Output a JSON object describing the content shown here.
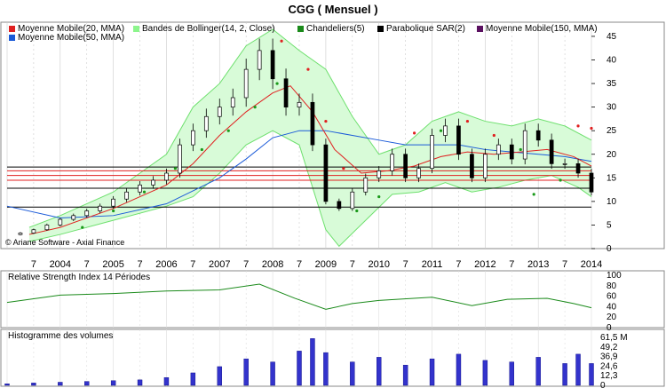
{
  "title": "CGG  ( Mensuel )",
  "legend": [
    {
      "label": "Moyenne Mobile(20, MMA)",
      "color": "#e02020"
    },
    {
      "label": "Bandes de Bollinger(14, 2, Close)",
      "color": "#8cf58c"
    },
    {
      "label": "Chandeliers(5)",
      "color": "#1a8a1a"
    },
    {
      "label": "Parabolique SAR(2)",
      "color": "#000000"
    },
    {
      "label": "Moyenne Mobile(150, MMA)",
      "color": "#5a1060"
    },
    {
      "label": "Moyenne Mobile(50, MMA)",
      "color": "#1a5ad8"
    }
  ],
  "copyright": "© Ariane Software - Axial Finance",
  "x_ticks": [
    "7",
    "2004",
    "7",
    "2005",
    "7",
    "2006",
    "7",
    "2007",
    "7",
    "2008",
    "7",
    "2009",
    "7",
    "2010",
    "7",
    "2011",
    "7",
    "2012",
    "7",
    "2013",
    "7",
    "2014"
  ],
  "rsi_label": "Relative Strength Index 14 Périodes",
  "volume_label": "Histogramme des volumes",
  "chart_data": [
    {
      "type": "candlestick",
      "title": "CGG  ( Mensuel )",
      "y_ticks": [
        "0",
        "5",
        "10",
        "15",
        "20",
        "25",
        "30",
        "35",
        "40",
        "45"
      ],
      "ylim": [
        0,
        48
      ],
      "x_range": [
        "2003-01",
        "2014-01"
      ],
      "horizontal_lines": {
        "red": [
          14.5,
          15.5,
          16.5
        ],
        "black": [
          8.8,
          12.8,
          17.3
        ]
      },
      "close_series": [
        [
          "2003-04",
          3.3
        ],
        [
          "2003-07",
          4.0
        ],
        [
          "2003-10",
          5.0
        ],
        [
          "2004-01",
          6.2
        ],
        [
          "2004-04",
          7.0
        ],
        [
          "2004-07",
          8.0
        ],
        [
          "2004-10",
          9.0
        ],
        [
          "2005-01",
          10.5
        ],
        [
          "2005-04",
          12.0
        ],
        [
          "2005-07",
          13.5
        ],
        [
          "2005-10",
          14.5
        ],
        [
          "2006-01",
          16.0
        ],
        [
          "2006-04",
          22.0
        ],
        [
          "2006-07",
          25.0
        ],
        [
          "2006-10",
          28.0
        ],
        [
          "2007-01",
          30.0
        ],
        [
          "2007-04",
          32.0
        ],
        [
          "2007-07",
          38.0
        ],
        [
          "2007-10",
          42.0
        ],
        [
          "2008-01",
          36.0
        ],
        [
          "2008-04",
          30.0
        ],
        [
          "2008-07",
          31.0
        ],
        [
          "2008-10",
          22.0
        ],
        [
          "2009-01",
          10.0
        ],
        [
          "2009-04",
          8.5
        ],
        [
          "2009-07",
          12.0
        ],
        [
          "2009-10",
          15.0
        ],
        [
          "2010-01",
          16.5
        ],
        [
          "2010-04",
          20.0
        ],
        [
          "2010-07",
          15.0
        ],
        [
          "2010-10",
          17.0
        ],
        [
          "2011-01",
          24.0
        ],
        [
          "2011-04",
          26.0
        ],
        [
          "2011-07",
          20.0
        ],
        [
          "2011-10",
          15.0
        ],
        [
          "2012-01",
          20.0
        ],
        [
          "2012-04",
          22.0
        ],
        [
          "2012-07",
          19.0
        ],
        [
          "2012-10",
          25.0
        ],
        [
          "2013-01",
          23.0
        ],
        [
          "2013-04",
          18.0
        ],
        [
          "2013-07",
          18.0
        ],
        [
          "2013-10",
          16.0
        ],
        [
          "2014-01",
          12.0
        ]
      ],
      "series": [
        {
          "name": "Moyenne Mobile(20, MMA)",
          "values": [
            [
              "2003-06",
              3.0
            ],
            [
              "2004-01",
              4.5
            ],
            [
              "2005-01",
              8.5
            ],
            [
              "2006-01",
              13.5
            ],
            [
              "2006-07",
              18.0
            ],
            [
              "2007-01",
              24.0
            ],
            [
              "2007-07",
              29.0
            ],
            [
              "2008-01",
              33.0
            ],
            [
              "2008-05",
              34.5
            ],
            [
              "2008-10",
              29.0
            ],
            [
              "2009-03",
              21.0
            ],
            [
              "2009-09",
              16.0
            ],
            [
              "2010-03",
              16.5
            ],
            [
              "2010-09",
              17.5
            ],
            [
              "2011-03",
              19.5
            ],
            [
              "2011-09",
              20.5
            ],
            [
              "2012-03",
              20.0
            ],
            [
              "2012-09",
              20.5
            ],
            [
              "2013-03",
              21.0
            ],
            [
              "2013-09",
              19.5
            ],
            [
              "2014-01",
              17.5
            ]
          ]
        },
        {
          "name": "Moyenne Mobile(50, MMA)",
          "values": [
            [
              "2003-01",
              9.0
            ],
            [
              "2004-01",
              6.5
            ],
            [
              "2005-01",
              7.0
            ],
            [
              "2006-01",
              9.5
            ],
            [
              "2007-01",
              15.0
            ],
            [
              "2007-07",
              19.0
            ],
            [
              "2008-01",
              23.5
            ],
            [
              "2008-07",
              25.0
            ],
            [
              "2009-01",
              25.0
            ],
            [
              "2009-07",
              24.0
            ],
            [
              "2010-01",
              23.0
            ],
            [
              "2010-07",
              22.0
            ],
            [
              "2011-01",
              22.0
            ],
            [
              "2011-07",
              22.0
            ],
            [
              "2012-01",
              21.0
            ],
            [
              "2012-07",
              20.5
            ],
            [
              "2013-01",
              20.0
            ],
            [
              "2013-07",
              19.5
            ],
            [
              "2014-01",
              18.5
            ]
          ]
        },
        {
          "name": "Bandes de Bollinger(14, 2, Close)",
          "upper": [
            [
              "2003-06",
              4.5
            ],
            [
              "2004-01",
              7.0
            ],
            [
              "2005-01",
              12.0
            ],
            [
              "2006-01",
              20.0
            ],
            [
              "2006-07",
              30.0
            ],
            [
              "2007-01",
              35.0
            ],
            [
              "2007-07",
              43.0
            ],
            [
              "2008-01",
              46.5
            ],
            [
              "2008-07",
              42.0
            ],
            [
              "2009-01",
              38.0
            ],
            [
              "2009-07",
              28.0
            ],
            [
              "2010-01",
              20.0
            ],
            [
              "2010-07",
              22.0
            ],
            [
              "2011-01",
              27.0
            ],
            [
              "2011-07",
              29.0
            ],
            [
              "2012-01",
              27.0
            ],
            [
              "2012-07",
              26.0
            ],
            [
              "2013-01",
              27.5
            ],
            [
              "2013-07",
              26.0
            ],
            [
              "2014-01",
              23.0
            ]
          ],
          "lower": [
            [
              "2003-06",
              1.5
            ],
            [
              "2004-01",
              3.0
            ],
            [
              "2005-01",
              6.0
            ],
            [
              "2006-01",
              9.0
            ],
            [
              "2006-07",
              11.0
            ],
            [
              "2007-01",
              16.0
            ],
            [
              "2007-07",
              22.0
            ],
            [
              "2008-01",
              25.0
            ],
            [
              "2008-07",
              22.0
            ],
            [
              "2009-01",
              4.0
            ],
            [
              "2009-04",
              0.5
            ],
            [
              "2009-10",
              6.0
            ],
            [
              "2010-04",
              11.5
            ],
            [
              "2010-10",
              12.0
            ],
            [
              "2011-04",
              14.0
            ],
            [
              "2011-10",
              12.0
            ],
            [
              "2012-04",
              13.0
            ],
            [
              "2012-10",
              14.5
            ],
            [
              "2013-04",
              15.5
            ],
            [
              "2013-10",
              13.0
            ],
            [
              "2014-01",
              11.0
            ]
          ]
        },
        {
          "name": "Parabolique SAR(2)",
          "values": [
            [
              "2004-06",
              4.5
            ],
            [
              "2005-01",
              8.0
            ],
            [
              "2005-08",
              12.0
            ],
            [
              "2006-03",
              17.0
            ],
            [
              "2006-09",
              21.0
            ],
            [
              "2007-03",
              25.0
            ],
            [
              "2007-09",
              30.0
            ],
            [
              "2008-02",
              35.0
            ],
            [
              "2008-03",
              44.0
            ],
            [
              "2008-09",
              38.0
            ],
            [
              "2009-01",
              27.0
            ],
            [
              "2009-05",
              17.0
            ],
            [
              "2009-08",
              8.0
            ],
            [
              "2010-01",
              11.0
            ],
            [
              "2010-09",
              24.5
            ],
            [
              "2011-03",
              25.0
            ],
            [
              "2011-09",
              27.0
            ],
            [
              "2012-03",
              24.0
            ],
            [
              "2012-09",
              21.0
            ],
            [
              "2012-12",
              11.5
            ],
            [
              "2013-06",
              14.5
            ],
            [
              "2013-10",
              26.0
            ],
            [
              "2014-01",
              25.5
            ]
          ]
        }
      ]
    },
    {
      "type": "line",
      "title": "Relative Strength Index 14 Périodes",
      "y_ticks": [
        "0",
        "20",
        "40",
        "60",
        "80",
        "100"
      ],
      "ylim": [
        0,
        100
      ],
      "values": [
        [
          "2003-01",
          48
        ],
        [
          "2004-01",
          62
        ],
        [
          "2005-01",
          65
        ],
        [
          "2006-01",
          70
        ],
        [
          "2007-01",
          72
        ],
        [
          "2007-10",
          83
        ],
        [
          "2008-06",
          56
        ],
        [
          "2009-01",
          35
        ],
        [
          "2009-07",
          46
        ],
        [
          "2010-01",
          52
        ],
        [
          "2011-01",
          58
        ],
        [
          "2011-10",
          42
        ],
        [
          "2012-06",
          54
        ],
        [
          "2013-03",
          56
        ],
        [
          "2013-09",
          46
        ],
        [
          "2014-01",
          38
        ]
      ]
    },
    {
      "type": "bar",
      "title": "Histogramme des volumes",
      "y_ticks": [
        "0",
        "12,3",
        "24,6",
        "36,9",
        "49,2",
        "61,5 M"
      ],
      "ylim": [
        0,
        61.5
      ],
      "values": [
        [
          "2003-01",
          2
        ],
        [
          "2003-07",
          3
        ],
        [
          "2004-01",
          4
        ],
        [
          "2004-07",
          5
        ],
        [
          "2005-01",
          6
        ],
        [
          "2005-07",
          7
        ],
        [
          "2006-01",
          10
        ],
        [
          "2006-07",
          16
        ],
        [
          "2007-01",
          24
        ],
        [
          "2007-07",
          34
        ],
        [
          "2008-01",
          30
        ],
        [
          "2008-07",
          44
        ],
        [
          "2008-10",
          60
        ],
        [
          "2009-01",
          42
        ],
        [
          "2009-07",
          30
        ],
        [
          "2010-01",
          36
        ],
        [
          "2010-07",
          26
        ],
        [
          "2011-01",
          34
        ],
        [
          "2011-07",
          40
        ],
        [
          "2012-01",
          32
        ],
        [
          "2012-07",
          30
        ],
        [
          "2013-01",
          36
        ],
        [
          "2013-07",
          28
        ],
        [
          "2013-10",
          40
        ],
        [
          "2014-01",
          28
        ]
      ]
    }
  ]
}
